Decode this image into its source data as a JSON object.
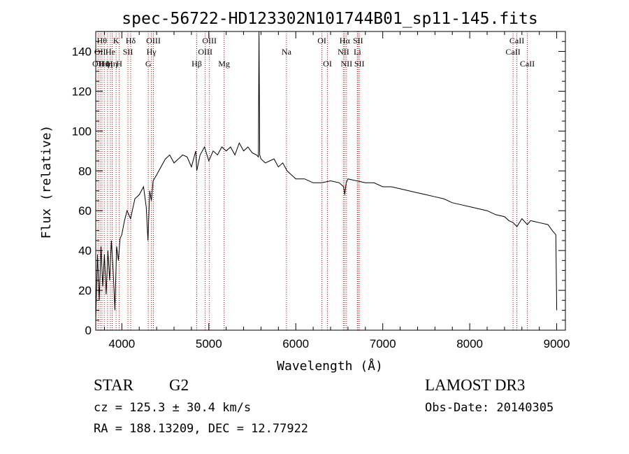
{
  "chart_data": {
    "type": "line",
    "title": "spec-56722-HD123302N101744B01_sp11-145.fits",
    "xlabel": "Wavelength (Å)",
    "ylabel": "Flux (relative)",
    "xlim": [
      3700,
      9100
    ],
    "ylim": [
      0,
      150
    ],
    "x_ticks": [
      4000,
      5000,
      6000,
      7000,
      8000,
      9000
    ],
    "y_ticks": [
      0,
      20,
      40,
      60,
      80,
      100,
      120,
      140
    ],
    "series": [
      {
        "name": "spectrum",
        "x": [
          3700,
          3720,
          3740,
          3760,
          3780,
          3800,
          3820,
          3840,
          3860,
          3880,
          3900,
          3920,
          3940,
          3960,
          3980,
          4000,
          4030,
          4060,
          4100,
          4150,
          4200,
          4250,
          4280,
          4300,
          4320,
          4340,
          4360,
          4400,
          4450,
          4500,
          4550,
          4600,
          4650,
          4700,
          4750,
          4800,
          4850,
          4861,
          4900,
          4950,
          5000,
          5050,
          5100,
          5150,
          5200,
          5250,
          5300,
          5350,
          5400,
          5450,
          5500,
          5550,
          5570,
          5577,
          5585,
          5600,
          5650,
          5700,
          5750,
          5800,
          5850,
          5900,
          5950,
          6000,
          6100,
          6200,
          6300,
          6400,
          6500,
          6550,
          6563,
          6580,
          6600,
          6700,
          6800,
          6900,
          7000,
          7100,
          7200,
          7300,
          7400,
          7500,
          7600,
          7700,
          7800,
          7900,
          8000,
          8100,
          8200,
          8300,
          8400,
          8450,
          8500,
          8542,
          8600,
          8662,
          8700,
          8800,
          8900,
          8950,
          8990,
          9000
        ],
        "y": [
          5,
          38,
          15,
          42,
          22,
          38,
          18,
          40,
          25,
          45,
          30,
          10,
          42,
          35,
          46,
          48,
          55,
          60,
          56,
          66,
          68,
          72,
          62,
          45,
          70,
          65,
          75,
          78,
          82,
          86,
          88,
          84,
          86,
          88,
          87,
          82,
          90,
          80,
          88,
          92,
          85,
          90,
          88,
          92,
          90,
          92,
          88,
          94,
          90,
          92,
          89,
          88,
          87,
          150,
          88,
          86,
          84,
          85,
          86,
          82,
          84,
          80,
          78,
          76,
          76,
          74,
          74,
          75,
          74,
          72,
          68,
          74,
          76,
          75,
          74,
          74,
          72,
          72,
          71,
          70,
          69,
          68,
          67,
          66,
          64,
          63,
          62,
          61,
          60,
          58,
          57,
          55,
          54,
          52,
          56,
          53,
          55,
          54,
          53,
          50,
          48,
          10
        ]
      }
    ],
    "lines": [
      {
        "wavelength": 3727,
        "label": "OII",
        "row": 3
      },
      {
        "wavelength": 3750,
        "label": "OII",
        "row": 2
      },
      {
        "wavelength": 3771,
        "label": "Hθ",
        "row": 1
      },
      {
        "wavelength": 3798,
        "label": "Hη",
        "row": 3
      },
      {
        "wavelength": 3835,
        "label": "Hη",
        "row": 3
      },
      {
        "wavelength": 3868,
        "label": "He",
        "row": 2
      },
      {
        "wavelength": 3889,
        "label": "Hη",
        "row": 3
      },
      {
        "wavelength": 3934,
        "label": "K",
        "row": 1
      },
      {
        "wavelength": 3970,
        "label": "H",
        "row": 3
      },
      {
        "wavelength": 4070,
        "label": "SII",
        "row": 2
      },
      {
        "wavelength": 4102,
        "label": "Hδ",
        "row": 1
      },
      {
        "wavelength": 4304,
        "label": "G",
        "row": 3
      },
      {
        "wavelength": 4340,
        "label": "Hγ",
        "row": 2
      },
      {
        "wavelength": 4363,
        "label": "OIII",
        "row": 1
      },
      {
        "wavelength": 4861,
        "label": "Hβ",
        "row": 3
      },
      {
        "wavelength": 4959,
        "label": "OIII",
        "row": 2
      },
      {
        "wavelength": 5007,
        "label": "OIII",
        "row": 1
      },
      {
        "wavelength": 5175,
        "label": "Mg",
        "row": 3
      },
      {
        "wavelength": 5893,
        "label": "Na",
        "row": 2
      },
      {
        "wavelength": 6300,
        "label": "OI",
        "row": 1
      },
      {
        "wavelength": 6364,
        "label": "OI",
        "row": 3
      },
      {
        "wavelength": 6548,
        "label": "NII",
        "row": 2
      },
      {
        "wavelength": 6563,
        "label": "Hα",
        "row": 1
      },
      {
        "wavelength": 6583,
        "label": "NII",
        "row": 3
      },
      {
        "wavelength": 6708,
        "label": "Li",
        "row": 2
      },
      {
        "wavelength": 6716,
        "label": "SII",
        "row": 1
      },
      {
        "wavelength": 6731,
        "label": "SII",
        "row": 3
      },
      {
        "wavelength": 8498,
        "label": "CaII",
        "row": 2
      },
      {
        "wavelength": 8542,
        "label": "CaII",
        "row": 1
      },
      {
        "wavelength": 8662,
        "label": "CaII",
        "row": 3
      }
    ],
    "grid": false
  },
  "info": {
    "object_class": "STAR",
    "subclass": "G2",
    "cz": "cz = 125.3 ± 30.4 km/s",
    "coords": "RA = 188.13209, DEC =  12.77922",
    "survey": "LAMOST DR3",
    "obs_date": "Obs-Date: 20140305"
  },
  "colors": {
    "spectrum": "#000000",
    "line_markers": "#cc0000"
  }
}
